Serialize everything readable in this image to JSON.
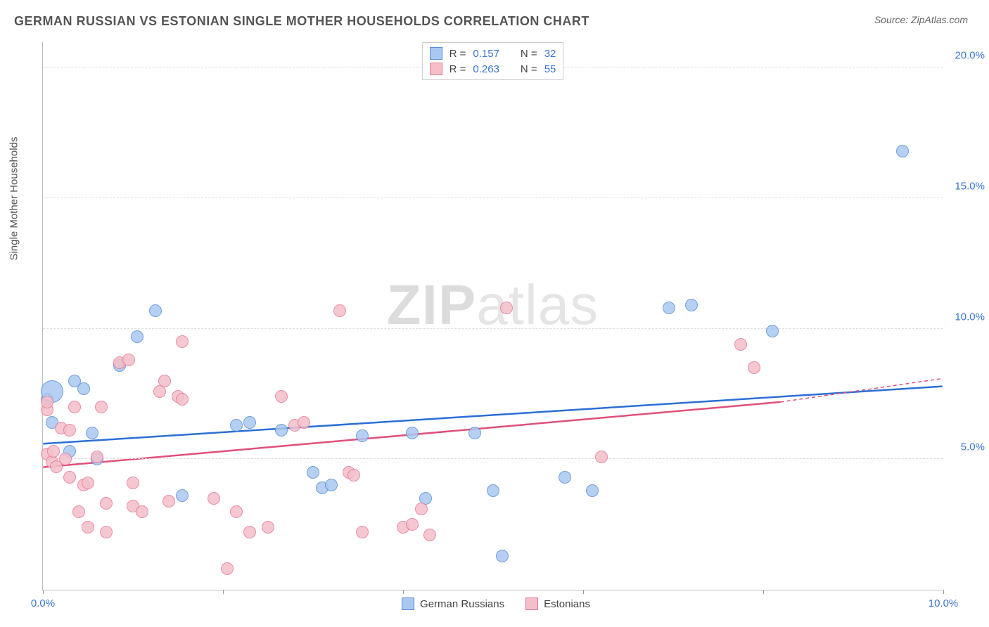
{
  "title": "GERMAN RUSSIAN VS ESTONIAN SINGLE MOTHER HOUSEHOLDS CORRELATION CHART",
  "source": "Source: ZipAtlas.com",
  "y_axis_label": "Single Mother Households",
  "watermark_bold": "ZIP",
  "watermark_light": "atlas",
  "chart": {
    "type": "scatter",
    "xlim": [
      0,
      10
    ],
    "ylim": [
      0,
      21
    ],
    "y_ticks": [
      5,
      10,
      15,
      20
    ],
    "y_tick_labels": [
      "5.0%",
      "10.0%",
      "15.0%",
      "20.0%"
    ],
    "x_ticks": [
      0,
      2,
      4,
      6,
      8,
      10
    ],
    "x_tick_labels_shown": {
      "0": "0.0%",
      "10": "10.0%"
    },
    "grid_color": "#dddddd",
    "background": "#ffffff",
    "series": [
      {
        "name": "German Russians",
        "fill": "#a9c8f0",
        "stroke": "#5b8fd6",
        "r": 0.157,
        "n": 32,
        "trend": {
          "x1": 0,
          "y1": 5.6,
          "x2": 10,
          "y2": 7.8,
          "color": "#2a6fd6",
          "width": 2.5
        },
        "points": [
          {
            "x": 0.05,
            "y": 7.3
          },
          {
            "x": 0.1,
            "y": 6.4
          },
          {
            "x": 0.1,
            "y": 7.6,
            "r": 16
          },
          {
            "x": 0.3,
            "y": 5.3
          },
          {
            "x": 0.35,
            "y": 8.0
          },
          {
            "x": 0.45,
            "y": 7.7
          },
          {
            "x": 0.55,
            "y": 6.0
          },
          {
            "x": 0.6,
            "y": 5.0
          },
          {
            "x": 0.85,
            "y": 8.6
          },
          {
            "x": 1.05,
            "y": 9.7
          },
          {
            "x": 1.25,
            "y": 10.7
          },
          {
            "x": 1.55,
            "y": 3.6
          },
          {
            "x": 2.15,
            "y": 6.3
          },
          {
            "x": 2.3,
            "y": 6.4
          },
          {
            "x": 2.65,
            "y": 6.1
          },
          {
            "x": 3.0,
            "y": 4.5
          },
          {
            "x": 3.1,
            "y": 3.9
          },
          {
            "x": 3.2,
            "y": 4.0
          },
          {
            "x": 3.55,
            "y": 5.9
          },
          {
            "x": 4.1,
            "y": 6.0
          },
          {
            "x": 4.25,
            "y": 3.5
          },
          {
            "x": 4.8,
            "y": 6.0
          },
          {
            "x": 5.0,
            "y": 3.8
          },
          {
            "x": 5.1,
            "y": 1.3
          },
          {
            "x": 5.8,
            "y": 4.3
          },
          {
            "x": 6.1,
            "y": 3.8
          },
          {
            "x": 6.95,
            "y": 10.8
          },
          {
            "x": 7.2,
            "y": 10.9
          },
          {
            "x": 8.1,
            "y": 9.9
          },
          {
            "x": 9.55,
            "y": 16.8
          }
        ]
      },
      {
        "name": "Estonians",
        "fill": "#f4bfc9",
        "stroke": "#e77a97",
        "r": 0.263,
        "n": 55,
        "trend": {
          "x1": 0,
          "y1": 4.7,
          "x2": 8.2,
          "y2": 7.2,
          "dash_to": 10,
          "dash_y": 8.1,
          "color": "#e04f7a",
          "width": 2.5
        },
        "points": [
          {
            "x": 0.05,
            "y": 6.9
          },
          {
            "x": 0.05,
            "y": 5.2
          },
          {
            "x": 0.05,
            "y": 7.2
          },
          {
            "x": 0.1,
            "y": 4.9
          },
          {
            "x": 0.12,
            "y": 5.3
          },
          {
            "x": 0.15,
            "y": 4.7
          },
          {
            "x": 0.2,
            "y": 6.2
          },
          {
            "x": 0.25,
            "y": 5.0
          },
          {
            "x": 0.3,
            "y": 6.1
          },
          {
            "x": 0.3,
            "y": 4.3
          },
          {
            "x": 0.35,
            "y": 7.0
          },
          {
            "x": 0.4,
            "y": 3.0
          },
          {
            "x": 0.45,
            "y": 4.0
          },
          {
            "x": 0.5,
            "y": 4.1
          },
          {
            "x": 0.5,
            "y": 2.4
          },
          {
            "x": 0.6,
            "y": 5.1
          },
          {
            "x": 0.65,
            "y": 7.0
          },
          {
            "x": 0.7,
            "y": 3.3
          },
          {
            "x": 0.7,
            "y": 2.2
          },
          {
            "x": 0.85,
            "y": 8.7
          },
          {
            "x": 0.95,
            "y": 8.8
          },
          {
            "x": 1.0,
            "y": 4.1
          },
          {
            "x": 1.0,
            "y": 3.2
          },
          {
            "x": 1.1,
            "y": 3.0
          },
          {
            "x": 1.3,
            "y": 7.6
          },
          {
            "x": 1.35,
            "y": 8.0
          },
          {
            "x": 1.4,
            "y": 3.4
          },
          {
            "x": 1.5,
            "y": 7.4
          },
          {
            "x": 1.55,
            "y": 7.3
          },
          {
            "x": 1.55,
            "y": 9.5
          },
          {
            "x": 1.9,
            "y": 3.5
          },
          {
            "x": 2.05,
            "y": 0.8
          },
          {
            "x": 2.15,
            "y": 3.0
          },
          {
            "x": 2.3,
            "y": 2.2
          },
          {
            "x": 2.5,
            "y": 2.4
          },
          {
            "x": 2.65,
            "y": 7.4
          },
          {
            "x": 2.8,
            "y": 6.3
          },
          {
            "x": 2.9,
            "y": 6.4
          },
          {
            "x": 3.3,
            "y": 10.7
          },
          {
            "x": 3.4,
            "y": 4.5
          },
          {
            "x": 3.45,
            "y": 4.4
          },
          {
            "x": 3.55,
            "y": 2.2
          },
          {
            "x": 4.0,
            "y": 2.4
          },
          {
            "x": 4.1,
            "y": 2.5
          },
          {
            "x": 4.2,
            "y": 3.1
          },
          {
            "x": 4.3,
            "y": 2.1
          },
          {
            "x": 5.15,
            "y": 10.8
          },
          {
            "x": 6.2,
            "y": 5.1
          },
          {
            "x": 7.75,
            "y": 9.4
          },
          {
            "x": 7.9,
            "y": 8.5
          }
        ]
      }
    ]
  },
  "legend_box": {
    "rows": [
      {
        "swatch_fill": "#a9c8f0",
        "swatch_stroke": "#5b8fd6",
        "r_label": "R =",
        "r_val": "0.157",
        "n_label": "N =",
        "n_val": "32"
      },
      {
        "swatch_fill": "#f4bfc9",
        "swatch_stroke": "#e77a97",
        "r_label": "R =",
        "r_val": "0.263",
        "n_label": "N =",
        "n_val": "55"
      }
    ]
  },
  "bottom_legend": [
    {
      "swatch_fill": "#a9c8f0",
      "swatch_stroke": "#5b8fd6",
      "label": "German Russians"
    },
    {
      "swatch_fill": "#f4bfc9",
      "swatch_stroke": "#e77a97",
      "label": "Estonians"
    }
  ]
}
